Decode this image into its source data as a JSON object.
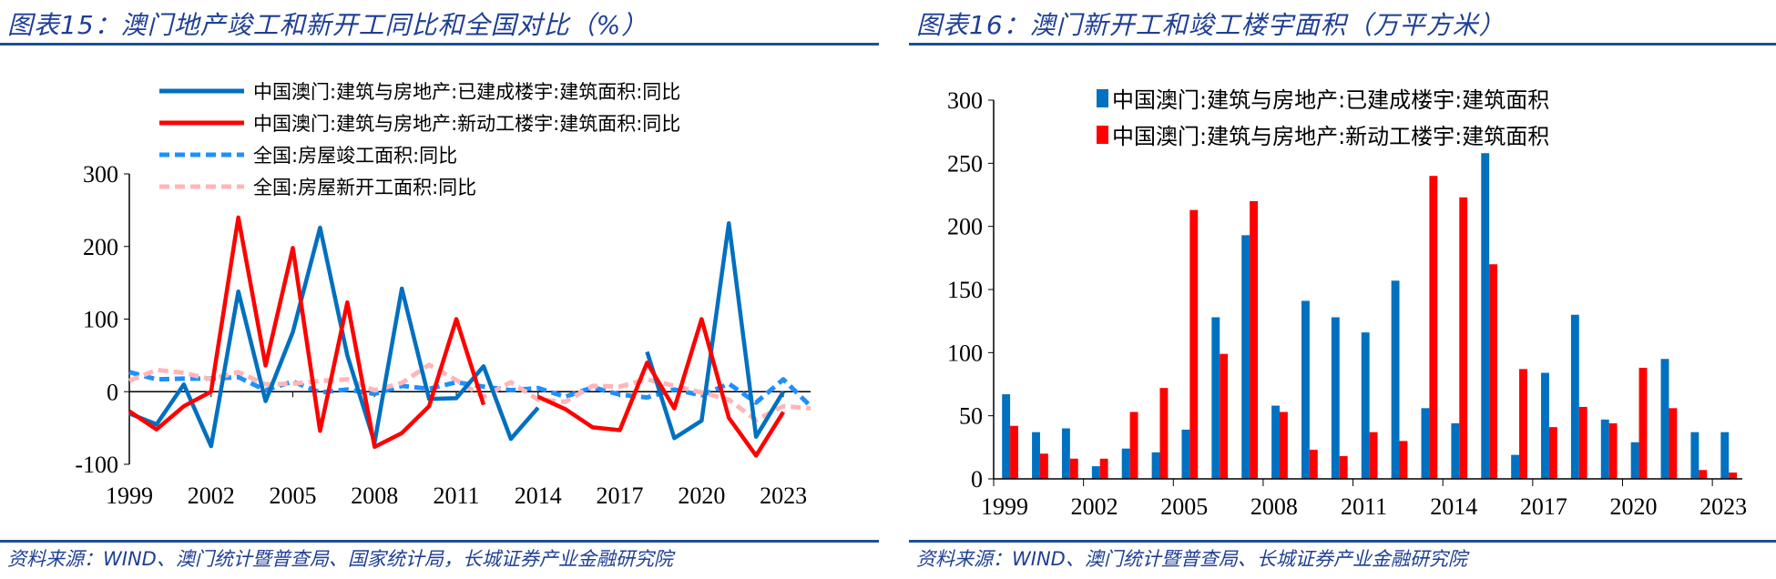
{
  "left": {
    "title": "图表15：澳门地产竣工和新开工同比和全国对比（%）",
    "source": "资料来源：WIND、澳门统计暨普查局、国家统计局，长城证券产业金融研究院"
  },
  "right": {
    "title": "图表16：澳门新开工和竣工楼宇面积（万平方米）",
    "source": "资料来源：WIND、澳门统计暨普查局、长城证券产业金融研究院"
  },
  "chart_data": [
    {
      "type": "line",
      "x": [
        1999,
        2000,
        2001,
        2002,
        2003,
        2004,
        2005,
        2006,
        2007,
        2008,
        2009,
        2010,
        2011,
        2012,
        2013,
        2014,
        2015,
        2016,
        2017,
        2018,
        2019,
        2020,
        2021,
        2022,
        2023,
        2024
      ],
      "x_ticks": [
        "1999",
        "2002",
        "2005",
        "2008",
        "2011",
        "2014",
        "2017",
        "2020",
        "2023"
      ],
      "y_ticks": [
        "300",
        "200",
        "100",
        "0",
        "-100"
      ],
      "ylim": [
        -100,
        300
      ],
      "legend": "top",
      "grid": false,
      "series": [
        {
          "name": "中国澳门:建筑与房地产:已建成楼宇:建筑面积:同比",
          "color": "#0070c0",
          "style": "solid",
          "values": [
            -30,
            -45,
            10,
            -75,
            138,
            -13,
            82,
            226,
            50,
            -70,
            142,
            -10,
            -9,
            35,
            -65,
            -22,
            null,
            null,
            null,
            55,
            -64,
            -40,
            232,
            -62,
            0,
            null
          ]
        },
        {
          "name": "中国澳门:建筑与房地产:新动工楼宇:建筑面积:同比",
          "color": "#ff0000",
          "style": "solid",
          "values": [
            -27,
            -52,
            -20,
            0,
            240,
            36,
            198,
            -54,
            123,
            -76,
            -57,
            -20,
            100,
            -18,
            null,
            -7,
            -24,
            -49,
            -53,
            40,
            -23,
            100,
            -36,
            -88,
            -28,
            null
          ]
        },
        {
          "name": "全国:房屋竣工面积:同比",
          "color": "#1e90ff",
          "style": "dashed",
          "values": [
            27,
            17,
            18,
            18,
            20,
            2,
            14,
            -1,
            3,
            -3,
            8,
            4,
            13,
            7,
            2,
            5,
            -7,
            6,
            -4,
            -8,
            3,
            -5,
            11,
            -15,
            17,
            -20
          ]
        },
        {
          "name": "全国:房屋新开工面积:同比",
          "color": "#ffb6b9",
          "style": "dashed",
          "values": [
            15,
            30,
            26,
            17,
            27,
            10,
            11,
            15,
            17,
            2,
            12,
            37,
            16,
            -7,
            13,
            -11,
            -14,
            8,
            7,
            17,
            8,
            -1,
            -11,
            -39,
            -20,
            -23
          ]
        }
      ]
    },
    {
      "type": "bar",
      "categories": [
        "1999",
        "2000",
        "2001",
        "2002",
        "2003",
        "2004",
        "2005",
        "2006",
        "2007",
        "2008",
        "2009",
        "2010",
        "2011",
        "2012",
        "2013",
        "2014",
        "2015",
        "2016",
        "2017",
        "2018",
        "2019",
        "2020",
        "2021",
        "2022",
        "2023"
      ],
      "x_ticks": [
        "1999",
        "2002",
        "2005",
        "2008",
        "2011",
        "2014",
        "2017",
        "2020",
        "2023"
      ],
      "y_ticks": [
        "300",
        "250",
        "200",
        "150",
        "100",
        "50",
        "0"
      ],
      "ylim": [
        0,
        300
      ],
      "legend": "top",
      "grid": false,
      "series": [
        {
          "name": "中国澳门:建筑与房地产:已建成楼宇:建筑面积",
          "color": "#0070c0",
          "values": [
            67,
            37,
            40,
            10,
            24,
            21,
            39,
            128,
            193,
            58,
            141,
            128,
            116,
            157,
            56,
            44,
            258,
            19,
            84,
            130,
            47,
            29,
            95,
            37,
            37
          ]
        },
        {
          "name": "中国澳门:建筑与房地产:新动工楼宇:建筑面积",
          "color": "#ff0000",
          "values": [
            42,
            20,
            16,
            16,
            53,
            72,
            213,
            99,
            220,
            53,
            23,
            18,
            37,
            30,
            240,
            223,
            170,
            87,
            41,
            57,
            44,
            88,
            56,
            7,
            5
          ]
        }
      ]
    }
  ]
}
